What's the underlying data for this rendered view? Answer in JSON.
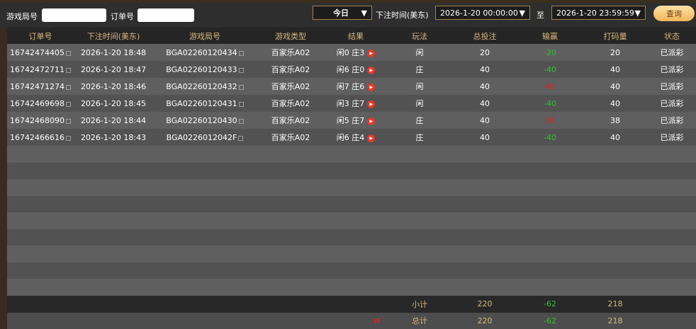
{
  "filters": {
    "round_label": "游戏局号",
    "round_value": "",
    "order_label": "订单号",
    "order_value": "",
    "period": "今日",
    "time_label": "下注时间(美东)",
    "start": "2026-1-20 00:00:00",
    "to_label": "至",
    "end": "2026-1-20 23:59:59",
    "query_button": "查询"
  },
  "columns": [
    "订单号",
    "下注时间(美东)",
    "游戏局号",
    "游戏类型",
    "结果",
    "玩法",
    "总投注",
    "输赢",
    "打码量",
    "状态"
  ],
  "rows": [
    {
      "order": "16742474405",
      "time": "2026-1-20 18:48",
      "round": "BGA02260120434",
      "type": "百家乐A02",
      "result": "闲0 庄3",
      "bet": "闲",
      "total": "20",
      "win": "-20",
      "win_color": "green",
      "code": "20",
      "status": "已派彩"
    },
    {
      "order": "16742472711",
      "time": "2026-1-20 18:47",
      "round": "BGA02260120433",
      "type": "百家乐A02",
      "result": "闲6 庄0",
      "bet": "庄",
      "total": "40",
      "win": "-40",
      "win_color": "green",
      "code": "40",
      "status": "已派彩"
    },
    {
      "order": "16742471274",
      "time": "2026-1-20 18:46",
      "round": "BGA02260120432",
      "type": "百家乐A02",
      "result": "闲7 庄6",
      "bet": "闲",
      "total": "40",
      "win": "40",
      "win_color": "red",
      "code": "40",
      "status": "已派彩"
    },
    {
      "order": "16742469698",
      "time": "2026-1-20 18:45",
      "round": "BGA02260120431",
      "type": "百家乐A02",
      "result": "闲3 庄7",
      "bet": "闲",
      "total": "40",
      "win": "-40",
      "win_color": "green",
      "code": "40",
      "status": "已派彩"
    },
    {
      "order": "16742468090",
      "time": "2026-1-20 18:44",
      "round": "BGA02260120430",
      "type": "百家乐A02",
      "result": "闲5 庄7",
      "bet": "庄",
      "total": "40",
      "win": "38",
      "win_color": "red",
      "code": "38",
      "status": "已派彩"
    },
    {
      "order": "16742466616",
      "time": "2026-1-20 18:43",
      "round": "BGA0226012042F",
      "type": "百家乐A02",
      "result": "闲6 庄4",
      "bet": "庄",
      "total": "40",
      "win": "-40",
      "win_color": "green",
      "code": "40",
      "status": "已派彩"
    }
  ],
  "subtotal": {
    "label": "小计",
    "total": "220",
    "win": "-62",
    "code": "218"
  },
  "grand_total": {
    "label": "总计",
    "total": "220",
    "win": "-62",
    "code": "218"
  },
  "colors": {
    "header_text": "#d9b67a",
    "win": "#e02020",
    "loss": "#2ec22e",
    "button": "#f0b458"
  }
}
